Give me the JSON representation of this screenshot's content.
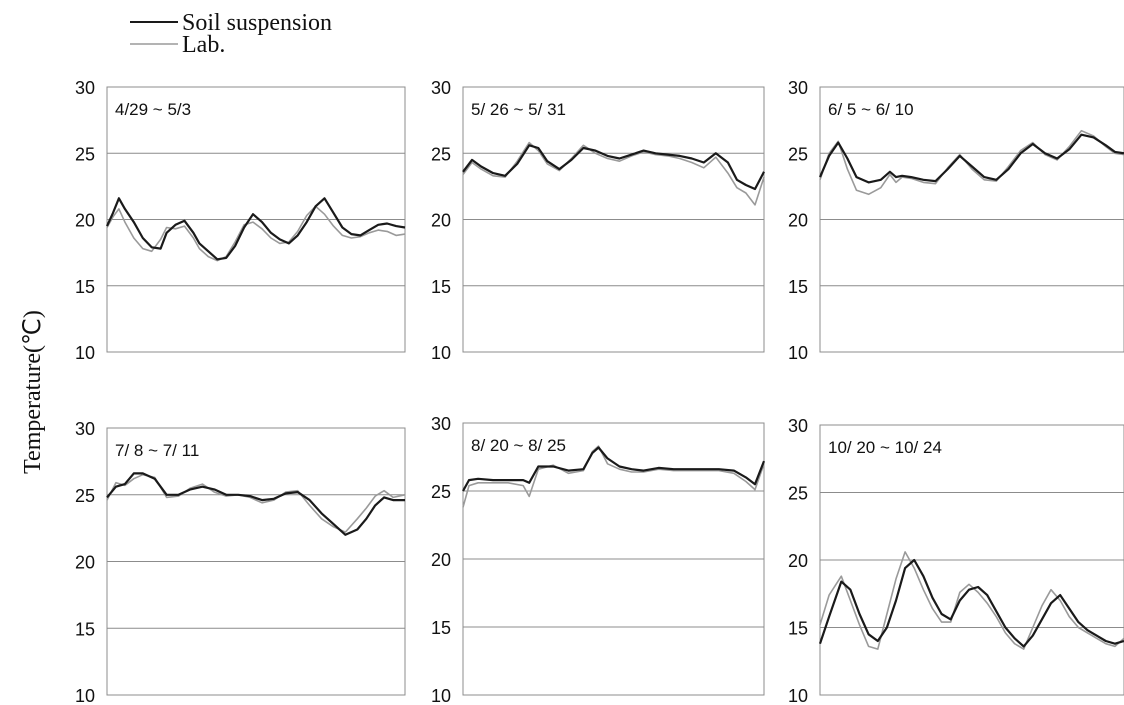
{
  "figure": {
    "ylabel": "Temperature(℃)",
    "legend": [
      {
        "label": "Soil suspension",
        "color": "#1a1a1a"
      },
      {
        "label": "Lab.",
        "color": "#9a9a9a"
      }
    ]
  },
  "chart_data": [
    {
      "type": "line",
      "title": "4/29 ~ 5/3",
      "ylim": [
        10,
        30
      ],
      "yticks": [
        "10",
        "15",
        "20",
        "25",
        "30"
      ],
      "grid": true,
      "series": [
        {
          "name": "Soil suspension",
          "color": "#1a1a1a",
          "x": [
            0,
            0.02,
            0.04,
            0.06,
            0.09,
            0.12,
            0.15,
            0.18,
            0.2,
            0.23,
            0.26,
            0.29,
            0.31,
            0.34,
            0.37,
            0.4,
            0.43,
            0.46,
            0.49,
            0.52,
            0.55,
            0.58,
            0.61,
            0.64,
            0.67,
            0.7,
            0.73,
            0.76,
            0.79,
            0.82,
            0.85,
            0.88,
            0.91,
            0.94,
            0.97,
            1.0
          ],
          "y": [
            19.5,
            20.5,
            21.6,
            20.8,
            19.8,
            18.6,
            17.9,
            17.8,
            19.0,
            19.6,
            19.9,
            19.0,
            18.2,
            17.6,
            17.0,
            17.1,
            18.0,
            19.4,
            20.4,
            19.8,
            19.0,
            18.5,
            18.2,
            18.8,
            19.8,
            21.0,
            21.6,
            20.5,
            19.4,
            18.9,
            18.8,
            19.2,
            19.6,
            19.7,
            19.5,
            19.4
          ]
        },
        {
          "name": "Lab.",
          "color": "#9a9a9a",
          "x": [
            0,
            0.02,
            0.04,
            0.06,
            0.09,
            0.12,
            0.15,
            0.18,
            0.2,
            0.23,
            0.26,
            0.29,
            0.31,
            0.34,
            0.37,
            0.4,
            0.43,
            0.46,
            0.49,
            0.52,
            0.55,
            0.58,
            0.61,
            0.64,
            0.67,
            0.7,
            0.73,
            0.76,
            0.79,
            0.82,
            0.85,
            0.88,
            0.91,
            0.94,
            0.97,
            1.0
          ],
          "y": [
            19.4,
            20.2,
            20.8,
            19.8,
            18.6,
            17.8,
            17.6,
            18.5,
            19.4,
            19.3,
            19.5,
            18.6,
            17.8,
            17.2,
            16.9,
            17.2,
            18.3,
            19.6,
            19.8,
            19.3,
            18.6,
            18.2,
            18.3,
            19.1,
            20.3,
            21.0,
            20.4,
            19.5,
            18.8,
            18.6,
            18.7,
            19.0,
            19.2,
            19.1,
            18.8,
            18.9
          ]
        }
      ]
    },
    {
      "type": "line",
      "title": "5/ 26 ~ 5/ 31",
      "ylim": [
        10,
        30
      ],
      "yticks": [
        "10",
        "15",
        "20",
        "25",
        "30"
      ],
      "grid": true,
      "series": [
        {
          "name": "Soil suspension",
          "color": "#1a1a1a",
          "x": [
            0,
            0.03,
            0.06,
            0.1,
            0.14,
            0.18,
            0.22,
            0.25,
            0.28,
            0.32,
            0.36,
            0.4,
            0.44,
            0.48,
            0.52,
            0.56,
            0.6,
            0.64,
            0.68,
            0.72,
            0.76,
            0.8,
            0.84,
            0.88,
            0.91,
            0.94,
            0.97,
            1.0
          ],
          "y": [
            23.6,
            24.5,
            24.0,
            23.5,
            23.3,
            24.2,
            25.6,
            25.4,
            24.4,
            23.8,
            24.5,
            25.4,
            25.2,
            24.8,
            24.6,
            24.9,
            25.2,
            25.0,
            24.9,
            24.8,
            24.6,
            24.3,
            25.0,
            24.3,
            23.0,
            22.6,
            22.3,
            23.6
          ]
        },
        {
          "name": "Lab.",
          "color": "#9a9a9a",
          "x": [
            0,
            0.03,
            0.06,
            0.1,
            0.14,
            0.18,
            0.22,
            0.25,
            0.28,
            0.32,
            0.36,
            0.4,
            0.44,
            0.48,
            0.52,
            0.56,
            0.6,
            0.64,
            0.68,
            0.72,
            0.76,
            0.8,
            0.84,
            0.88,
            0.91,
            0.94,
            0.97,
            1.0
          ],
          "y": [
            23.4,
            24.3,
            23.8,
            23.3,
            23.2,
            24.4,
            25.8,
            25.2,
            24.2,
            23.7,
            24.6,
            25.6,
            25.0,
            24.6,
            24.4,
            24.8,
            25.1,
            24.9,
            24.8,
            24.6,
            24.3,
            23.9,
            24.7,
            23.5,
            22.4,
            22.0,
            21.1,
            23.2
          ]
        }
      ]
    },
    {
      "type": "line",
      "title": "6/ 5 ~ 6/ 10",
      "ylim": [
        10,
        30
      ],
      "yticks": [
        "10",
        "15",
        "20",
        "25",
        "30"
      ],
      "grid": true,
      "series": [
        {
          "name": "Soil suspension",
          "color": "#1a1a1a",
          "x": [
            0,
            0.03,
            0.06,
            0.09,
            0.12,
            0.16,
            0.2,
            0.23,
            0.25,
            0.27,
            0.3,
            0.34,
            0.38,
            0.42,
            0.46,
            0.5,
            0.54,
            0.58,
            0.62,
            0.66,
            0.7,
            0.74,
            0.78,
            0.82,
            0.86,
            0.9,
            0.94,
            0.97,
            1.0
          ],
          "y": [
            23.2,
            24.8,
            25.8,
            24.6,
            23.2,
            22.8,
            23.0,
            23.6,
            23.2,
            23.3,
            23.2,
            23.0,
            22.9,
            23.8,
            24.8,
            24.0,
            23.2,
            23.0,
            23.8,
            25.0,
            25.7,
            25.0,
            24.6,
            25.3,
            26.4,
            26.2,
            25.6,
            25.1,
            25.0
          ]
        },
        {
          "name": "Lab.",
          "color": "#9a9a9a",
          "x": [
            0,
            0.03,
            0.06,
            0.09,
            0.12,
            0.16,
            0.2,
            0.23,
            0.25,
            0.27,
            0.3,
            0.34,
            0.38,
            0.42,
            0.46,
            0.5,
            0.54,
            0.58,
            0.62,
            0.66,
            0.7,
            0.74,
            0.78,
            0.82,
            0.86,
            0.9,
            0.94,
            0.97,
            1.0
          ],
          "y": [
            23.0,
            25.0,
            25.9,
            23.8,
            22.2,
            21.9,
            22.4,
            23.4,
            22.8,
            23.2,
            23.1,
            22.8,
            22.7,
            23.9,
            24.9,
            23.8,
            23.0,
            22.9,
            24.0,
            25.2,
            25.8,
            24.9,
            24.5,
            25.5,
            26.7,
            26.3,
            25.5,
            25.0,
            24.9
          ]
        }
      ]
    },
    {
      "type": "line",
      "title": "7/ 8 ~ 7/ 11",
      "ylim": [
        10,
        30
      ],
      "yticks": [
        "10",
        "15",
        "20",
        "25",
        "30"
      ],
      "grid": true,
      "series": [
        {
          "name": "Soil suspension",
          "color": "#1a1a1a",
          "x": [
            0,
            0.03,
            0.06,
            0.09,
            0.12,
            0.16,
            0.2,
            0.24,
            0.28,
            0.32,
            0.36,
            0.4,
            0.44,
            0.48,
            0.52,
            0.56,
            0.6,
            0.64,
            0.68,
            0.72,
            0.76,
            0.8,
            0.84,
            0.87,
            0.9,
            0.93,
            0.96,
            1.0
          ],
          "y": [
            24.8,
            25.6,
            25.8,
            26.6,
            26.6,
            26.2,
            25.0,
            25.0,
            25.4,
            25.6,
            25.4,
            25.0,
            25.0,
            24.9,
            24.6,
            24.7,
            25.1,
            25.2,
            24.6,
            23.6,
            22.8,
            22.0,
            22.4,
            23.2,
            24.2,
            24.8,
            24.6,
            24.6
          ]
        },
        {
          "name": "Lab.",
          "color": "#9a9a9a",
          "x": [
            0,
            0.03,
            0.06,
            0.09,
            0.12,
            0.16,
            0.2,
            0.24,
            0.28,
            0.32,
            0.36,
            0.4,
            0.44,
            0.48,
            0.52,
            0.56,
            0.6,
            0.64,
            0.68,
            0.72,
            0.76,
            0.8,
            0.84,
            0.87,
            0.9,
            0.93,
            0.96,
            1.0
          ],
          "y": [
            24.6,
            25.9,
            25.7,
            26.2,
            26.5,
            26.3,
            24.8,
            24.9,
            25.5,
            25.8,
            25.2,
            24.9,
            25.0,
            24.8,
            24.4,
            24.6,
            25.2,
            25.3,
            24.2,
            23.2,
            22.6,
            22.2,
            23.2,
            24.0,
            24.9,
            25.3,
            24.8,
            25.0
          ]
        }
      ]
    },
    {
      "type": "line",
      "title": "8/ 20 ~ 8/ 25",
      "ylim": [
        10,
        30
      ],
      "yticks": [
        "10",
        "15",
        "20",
        "25",
        "30"
      ],
      "grid": true,
      "series": [
        {
          "name": "Soil suspension",
          "color": "#1a1a1a",
          "x": [
            0,
            0.02,
            0.05,
            0.1,
            0.15,
            0.2,
            0.22,
            0.25,
            0.3,
            0.35,
            0.4,
            0.43,
            0.45,
            0.48,
            0.52,
            0.56,
            0.6,
            0.65,
            0.7,
            0.75,
            0.8,
            0.85,
            0.9,
            0.94,
            0.97,
            1.0
          ],
          "y": [
            25.0,
            25.8,
            25.9,
            25.8,
            25.8,
            25.8,
            25.6,
            26.8,
            26.8,
            26.5,
            26.6,
            27.8,
            28.2,
            27.4,
            26.8,
            26.6,
            26.5,
            26.7,
            26.6,
            26.6,
            26.6,
            26.6,
            26.5,
            26.0,
            25.5,
            27.2
          ]
        },
        {
          "name": "Lab.",
          "color": "#9a9a9a",
          "x": [
            0,
            0.02,
            0.05,
            0.1,
            0.15,
            0.2,
            0.22,
            0.25,
            0.3,
            0.35,
            0.4,
            0.43,
            0.45,
            0.48,
            0.52,
            0.56,
            0.6,
            0.65,
            0.7,
            0.75,
            0.8,
            0.85,
            0.9,
            0.94,
            0.97,
            1.0
          ],
          "y": [
            23.8,
            25.4,
            25.6,
            25.6,
            25.6,
            25.4,
            24.6,
            26.6,
            26.9,
            26.3,
            26.5,
            27.9,
            28.3,
            27.0,
            26.6,
            26.4,
            26.4,
            26.6,
            26.5,
            26.5,
            26.5,
            26.5,
            26.3,
            25.7,
            25.1,
            27.0
          ]
        }
      ]
    },
    {
      "type": "line",
      "title": "10/ 20 ~ 10/ 24",
      "ylim": [
        10,
        30
      ],
      "yticks": [
        "10",
        "15",
        "20",
        "25",
        "30"
      ],
      "grid": true,
      "series": [
        {
          "name": "Soil suspension",
          "color": "#1a1a1a",
          "x": [
            0,
            0.03,
            0.07,
            0.1,
            0.13,
            0.16,
            0.19,
            0.22,
            0.25,
            0.28,
            0.31,
            0.34,
            0.37,
            0.4,
            0.43,
            0.46,
            0.49,
            0.52,
            0.55,
            0.58,
            0.61,
            0.64,
            0.67,
            0.7,
            0.73,
            0.76,
            0.79,
            0.82,
            0.85,
            0.88,
            0.91,
            0.94,
            0.97,
            1.0
          ],
          "y": [
            13.8,
            15.8,
            18.4,
            17.8,
            16.0,
            14.5,
            14.0,
            15.0,
            17.0,
            19.4,
            20.0,
            18.8,
            17.2,
            16.0,
            15.6,
            17.0,
            17.8,
            18.0,
            17.4,
            16.2,
            15.0,
            14.2,
            13.6,
            14.4,
            15.6,
            16.8,
            17.4,
            16.4,
            15.4,
            14.8,
            14.4,
            14.0,
            13.8,
            14.0
          ]
        },
        {
          "name": "Lab.",
          "color": "#9a9a9a",
          "x": [
            0,
            0.03,
            0.07,
            0.1,
            0.13,
            0.16,
            0.19,
            0.22,
            0.25,
            0.28,
            0.31,
            0.34,
            0.37,
            0.4,
            0.43,
            0.46,
            0.49,
            0.52,
            0.55,
            0.58,
            0.61,
            0.64,
            0.67,
            0.7,
            0.73,
            0.76,
            0.79,
            0.82,
            0.85,
            0.88,
            0.91,
            0.94,
            0.97,
            1.0
          ],
          "y": [
            15.2,
            17.4,
            18.8,
            17.0,
            15.2,
            13.6,
            13.4,
            16.0,
            18.6,
            20.6,
            19.4,
            17.8,
            16.4,
            15.4,
            15.4,
            17.6,
            18.2,
            17.6,
            16.8,
            15.8,
            14.6,
            13.8,
            13.4,
            15.0,
            16.6,
            17.8,
            17.0,
            15.8,
            15.0,
            14.6,
            14.2,
            13.8,
            13.6,
            14.2
          ]
        }
      ]
    }
  ]
}
